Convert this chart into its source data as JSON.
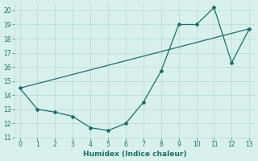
{
  "xlabel": "Humidex (Indice chaleur)",
  "line1_x": [
    0,
    1,
    2,
    3,
    4,
    5,
    6,
    7,
    8,
    9,
    10,
    11,
    12,
    13
  ],
  "line1_y": [
    14.5,
    13.0,
    12.8,
    12.5,
    11.7,
    11.5,
    12.0,
    13.5,
    15.7,
    19.0,
    19.0,
    20.2,
    16.3,
    18.7
  ],
  "line2_x": [
    0,
    13
  ],
  "line2_y": [
    14.5,
    18.7
  ],
  "line_color": "#1e6e64",
  "bg_color": "#d8f0ec",
  "grid_color": "#b8ddd8",
  "ylim": [
    11,
    20.5
  ],
  "xlim": [
    -0.3,
    13.3
  ],
  "yticks": [
    11,
    12,
    13,
    14,
    15,
    16,
    17,
    18,
    19,
    20
  ],
  "xticks": [
    0,
    1,
    2,
    3,
    4,
    5,
    6,
    7,
    8,
    9,
    10,
    11,
    12,
    13
  ]
}
